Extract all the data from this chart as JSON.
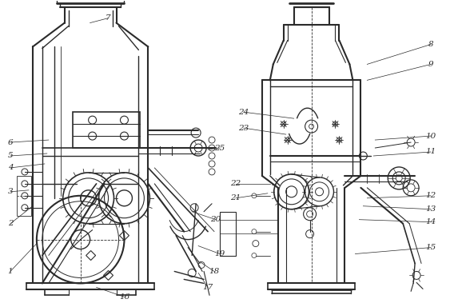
{
  "bg_color": "#ffffff",
  "line_color": "#2a2a2a",
  "fig_width": 5.63,
  "fig_height": 3.79,
  "dpi": 100
}
